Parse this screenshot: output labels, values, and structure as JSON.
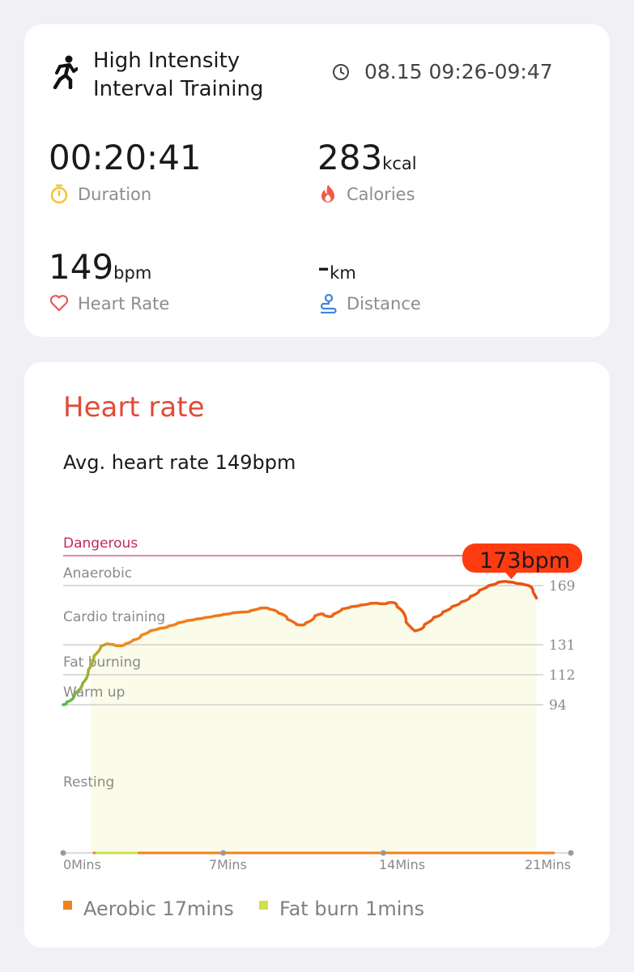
{
  "summary": {
    "workout_name": "High Intensity Interval Training",
    "time_range": "08.15 09:26-09:47",
    "duration": {
      "value": "00:20:41",
      "unit": "",
      "label": "Duration",
      "icon": "stopwatch-icon",
      "icon_color": "#f3c32b"
    },
    "calories": {
      "value": "283",
      "unit": "kcal",
      "label": "Calories",
      "icon": "flame-icon",
      "icon_color": "#ef5b45"
    },
    "heart_rate": {
      "value": "149",
      "unit": "bpm",
      "label": "Heart Rate",
      "icon": "heart-icon",
      "icon_color": "#e85a5a"
    },
    "distance": {
      "value": "-",
      "unit": "km",
      "label": "Distance",
      "icon": "route-pin-icon",
      "icon_color": "#3d86d8"
    }
  },
  "heart_rate_card": {
    "title": "Heart rate",
    "avg_text": "Avg. heart rate 149bpm",
    "title_color": "#e04b3a"
  },
  "chart_data": {
    "type": "area",
    "x_ticks": [
      "0Mins",
      "7Mins",
      "14Mins",
      "21Mins"
    ],
    "x_range": [
      0,
      21
    ],
    "zones": [
      {
        "name": "Dangerous",
        "threshold": 188
      },
      {
        "name": "Anaerobic",
        "threshold": 169
      },
      {
        "name": "Cardio training",
        "threshold": 131
      },
      {
        "name": "Fat burning",
        "threshold": 112
      },
      {
        "name": "Warm up",
        "threshold": 94
      },
      {
        "name": "Resting",
        "threshold": null
      }
    ],
    "y_ticks": [
      188,
      169,
      131,
      112,
      94
    ],
    "peak_label": "173bpm",
    "peak": {
      "x": 19.6,
      "y": 173
    },
    "series": [
      {
        "x": [
          0,
          0.3,
          0.7,
          1.0,
          1.2,
          1.5,
          1.8,
          2.1,
          2.5,
          2.9,
          3.2,
          3.6,
          4.0,
          4.4,
          4.8,
          5.2,
          5.6,
          6.0,
          6.4,
          6.8,
          7.2,
          7.6,
          8.0,
          8.4,
          8.8,
          9.2,
          9.6,
          10.0,
          10.4,
          10.8,
          11.2,
          11.6,
          12.0,
          12.4,
          12.8,
          13.2,
          13.6,
          14.0,
          14.4,
          14.8,
          15.2,
          15.6,
          16.0,
          16.4,
          16.8,
          17.2,
          17.6,
          18.0,
          18.4,
          18.8,
          19.2,
          19.6,
          20.0,
          20.4,
          20.7
        ],
        "y": [
          94,
          97,
          104,
          110,
          120,
          128,
          132,
          131,
          130,
          133,
          135,
          139,
          141,
          142,
          144,
          146,
          147,
          148,
          149,
          150,
          151,
          152,
          152,
          154,
          155,
          153,
          150,
          145,
          143,
          147,
          152,
          148,
          153,
          155,
          156,
          157,
          158,
          157,
          159,
          152,
          139,
          141,
          147,
          150,
          154,
          157,
          160,
          164,
          168,
          170,
          172,
          171,
          170,
          169,
          161
        ]
      }
    ],
    "legend": [
      {
        "label": "Aerobic 17mins",
        "color": "#f08219"
      },
      {
        "label": "Fat burn 1mins",
        "color": "#cfe04a"
      }
    ]
  }
}
